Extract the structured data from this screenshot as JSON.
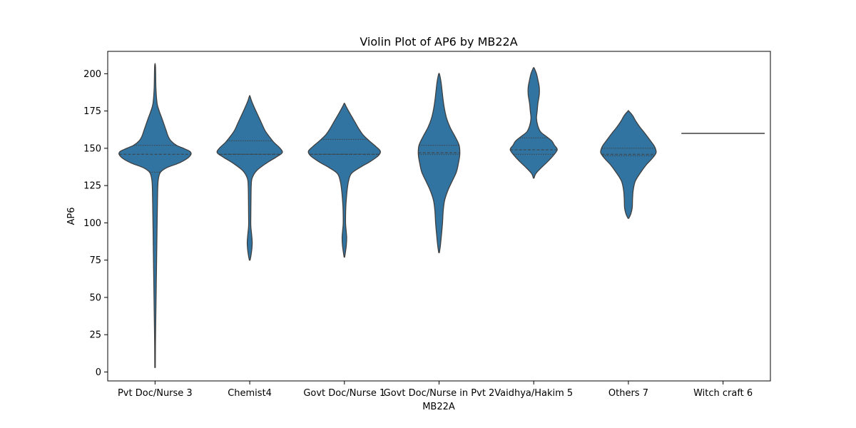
{
  "chart_data": {
    "type": "violin",
    "title": "Violin Plot of AP6 by MB22A",
    "xlabel": "MB22A",
    "ylabel": "AP6",
    "ylim": [
      -6,
      215
    ],
    "yticks": [
      0,
      25,
      50,
      75,
      100,
      125,
      150,
      175,
      200
    ],
    "grid": false,
    "fill_color": "#3274a1",
    "edge_color": "#3f3f3f",
    "categories": [
      "Pvt Doc/Nurse 3",
      "Chemist4",
      "Govt Doc/Nurse 1",
      "Govt Doc/Nurse in Pvt 2",
      "Vaidhya/Hakim 5",
      "Others 7",
      "Witch craft 6"
    ],
    "violins": [
      {
        "category": "Pvt Doc/Nurse 3",
        "min": 3,
        "max": 205,
        "quartiles": [
          134,
          146,
          152
        ],
        "profile": [
          [
            3,
            0.4
          ],
          [
            20,
            0.6
          ],
          [
            40,
            1.2
          ],
          [
            60,
            1.8
          ],
          [
            80,
            2.4
          ],
          [
            100,
            3.0
          ],
          [
            115,
            3.5
          ],
          [
            125,
            4
          ],
          [
            130,
            5
          ],
          [
            134,
            8
          ],
          [
            137,
            17
          ],
          [
            140,
            34
          ],
          [
            143,
            46
          ],
          [
            146,
            52
          ],
          [
            148,
            50
          ],
          [
            150,
            41
          ],
          [
            152,
            31
          ],
          [
            155,
            23
          ],
          [
            158,
            19
          ],
          [
            162,
            16
          ],
          [
            166,
            13
          ],
          [
            170,
            10
          ],
          [
            175,
            6
          ],
          [
            180,
            3
          ],
          [
            190,
            1.3
          ],
          [
            205,
            0.6
          ]
        ]
      },
      {
        "category": "Chemist4",
        "min": 75,
        "max": 185,
        "quartiles": [
          146,
          146,
          155
        ],
        "profile": [
          [
            75,
            0.5
          ],
          [
            78,
            1.8
          ],
          [
            83,
            3.2
          ],
          [
            87,
            3.6
          ],
          [
            92,
            2.8
          ],
          [
            98,
            1.6
          ],
          [
            105,
            1.6
          ],
          [
            115,
            1.8
          ],
          [
            125,
            2.2
          ],
          [
            130,
            3.5
          ],
          [
            135,
            10
          ],
          [
            140,
            24
          ],
          [
            144,
            38
          ],
          [
            147,
            47
          ],
          [
            150,
            44
          ],
          [
            154,
            35
          ],
          [
            158,
            28
          ],
          [
            162,
            22
          ],
          [
            167,
            17
          ],
          [
            172,
            12
          ],
          [
            177,
            7
          ],
          [
            182,
            2.5
          ],
          [
            185,
            0.4
          ]
        ]
      },
      {
        "category": "Govt Doc/Nurse 1",
        "min": 77,
        "max": 180,
        "quartiles": [
          146,
          146,
          156
        ],
        "profile": [
          [
            77,
            0.4
          ],
          [
            80,
            1.4
          ],
          [
            85,
            2.8
          ],
          [
            90,
            3.3
          ],
          [
            95,
            2.5
          ],
          [
            100,
            1.7
          ],
          [
            110,
            2
          ],
          [
            117,
            3
          ],
          [
            122,
            4
          ],
          [
            128,
            6
          ],
          [
            133,
            10
          ],
          [
            137,
            22
          ],
          [
            141,
            37
          ],
          [
            145,
            49
          ],
          [
            148,
            52
          ],
          [
            151,
            46
          ],
          [
            155,
            36
          ],
          [
            159,
            27
          ],
          [
            163,
            21
          ],
          [
            167,
            16
          ],
          [
            171,
            11
          ],
          [
            175,
            6
          ],
          [
            178,
            2.5
          ],
          [
            180,
            0.4
          ]
        ]
      },
      {
        "category": "Govt Doc/Nurse in Pvt 2",
        "min": 80,
        "max": 200,
        "quartiles": [
          146,
          147,
          152
        ],
        "profile": [
          [
            80,
            0.5
          ],
          [
            85,
            2
          ],
          [
            92,
            3.5
          ],
          [
            100,
            5
          ],
          [
            108,
            6
          ],
          [
            115,
            8
          ],
          [
            122,
            13
          ],
          [
            128,
            19
          ],
          [
            134,
            25
          ],
          [
            140,
            28
          ],
          [
            146,
            30
          ],
          [
            152,
            29
          ],
          [
            158,
            23
          ],
          [
            164,
            16
          ],
          [
            170,
            11
          ],
          [
            176,
            8
          ],
          [
            182,
            6
          ],
          [
            188,
            4.5
          ],
          [
            194,
            3
          ],
          [
            198,
            1.5
          ],
          [
            200,
            0.4
          ]
        ]
      },
      {
        "category": "Vaidhya/Hakim 5",
        "min": 130,
        "max": 204,
        "quartiles": [
          146,
          149,
          157
        ],
        "profile": [
          [
            130,
            0.5
          ],
          [
            133,
            3
          ],
          [
            137,
            11
          ],
          [
            141,
            20
          ],
          [
            145,
            28
          ],
          [
            149,
            34
          ],
          [
            152,
            30
          ],
          [
            155,
            26
          ],
          [
            158,
            18
          ],
          [
            161,
            10
          ],
          [
            165,
            6
          ],
          [
            170,
            4
          ],
          [
            175,
            5
          ],
          [
            180,
            6
          ],
          [
            186,
            8
          ],
          [
            191,
            8
          ],
          [
            196,
            6
          ],
          [
            200,
            4
          ],
          [
            203,
            1.5
          ],
          [
            204,
            0.4
          ]
        ]
      },
      {
        "category": "Others 7",
        "min": 103,
        "max": 175,
        "quartiles": [
          145,
          146,
          150
        ],
        "profile": [
          [
            103,
            0.5
          ],
          [
            106,
            3.5
          ],
          [
            110,
            5.5
          ],
          [
            116,
            6
          ],
          [
            122,
            7
          ],
          [
            128,
            10
          ],
          [
            134,
            18
          ],
          [
            139,
            26
          ],
          [
            143,
            34
          ],
          [
            147,
            40
          ],
          [
            151,
            38
          ],
          [
            155,
            32
          ],
          [
            160,
            24
          ],
          [
            164,
            17
          ],
          [
            168,
            11
          ],
          [
            172,
            6
          ],
          [
            175,
            0.5
          ]
        ]
      },
      {
        "category": "Witch craft 6",
        "single_value": 160
      }
    ]
  }
}
